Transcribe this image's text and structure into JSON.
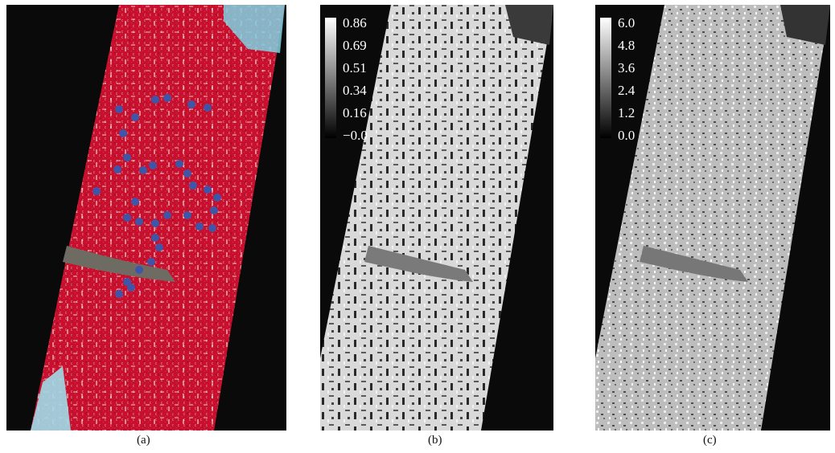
{
  "panels": [
    {
      "id": "a",
      "caption": "(a)",
      "colors": {
        "land": "#c8102e",
        "river": "#6d6b62",
        "water": "#7fd0e0",
        "sample": "#3f56a8"
      }
    },
    {
      "id": "b",
      "caption": "(b)",
      "legend": [
        "0.86",
        "0.69",
        "0.51",
        "0.34",
        "0.16",
        "−0.0"
      ]
    },
    {
      "id": "c",
      "caption": "(c)",
      "legend": [
        "6.0",
        "4.8",
        "3.6",
        "2.4",
        "1.2",
        "0.0"
      ]
    }
  ]
}
